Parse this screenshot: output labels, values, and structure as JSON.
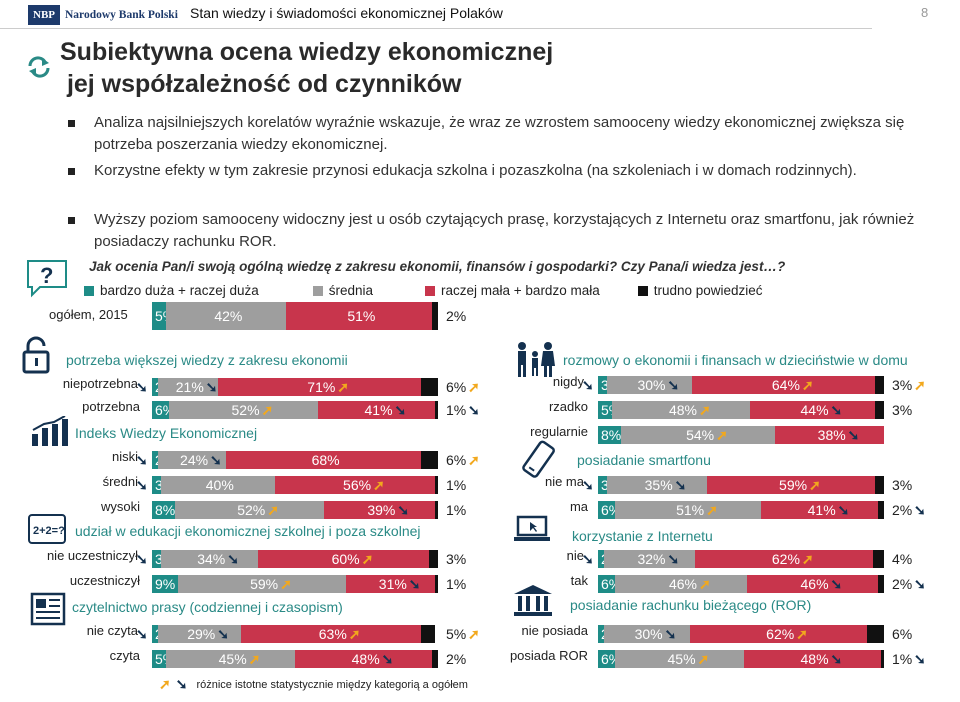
{
  "header": {
    "logo_abbr": "NBP",
    "logo_name": "Narodowy Bank Polski",
    "title": "Stan wiedzy i świadomości ekonomicznej Polaków",
    "page_number": "8"
  },
  "title_line1": "Subiektywna ocena wiedzy ekonomicznej",
  "title_line2": " jej współzależność od czynników",
  "bullets": [
    "Analiza najsilniejszych korelatów wyraźnie wskazuje, że wraz ze wzrostem samooceny wiedzy ekonomicznej zwiększa się potrzeba poszerzania wiedzy ekonomicznej.",
    "Korzystne efekty w tym zakresie przynosi edukacja szkolna i pozaszkolna (na szkoleniach i w domach rodzinnych).",
    "Wyższy poziom samooceny widoczny jest u osób czytających prasę, korzystających z Internetu oraz smartfonu, jak również posiadaczy rachunku ROR."
  ],
  "question": "Jak ocenia Pan/i swoją ogólną wiedzę z zakresu ekonomii, finansów i gospodarki? Czy Pana/i wiedza jest…?",
  "colors": {
    "teal": "#1e8c87",
    "gray": "#9e9e9e",
    "red": "#c8354c",
    "black": "#111111",
    "orange": "#f2a81d",
    "navy": "#14314f"
  },
  "footnote": "różnice istotne statystycznie między kategorią a ogółem",
  "chart_data": {
    "type": "bar",
    "stacked": true,
    "orientation": "horizontal",
    "legend": [
      "bardzo duża + raczej duża",
      "średnia",
      "raczej mała + bardzo mała",
      "trudno powiedzieć"
    ],
    "overall": {
      "label": "ogółem, 2015",
      "values": [
        5,
        42,
        51,
        2
      ]
    },
    "groups": [
      {
        "title": "potrzeba większej wiedzy z zakresu ekonomii",
        "side": "left",
        "rows": [
          {
            "label": "niepotrzebna",
            "values": [
              2,
              21,
              71,
              6
            ],
            "label_markers": [
              "down"
            ],
            "value_markers": [
              "",
              "down",
              "up",
              "up"
            ]
          },
          {
            "label": "potrzebna",
            "values": [
              6,
              52,
              41,
              1
            ],
            "label_markers": [],
            "value_markers": [
              "up",
              "up",
              "down",
              "down"
            ]
          }
        ]
      },
      {
        "title": "Indeks Wiedzy Ekonomicznej",
        "side": "left",
        "rows": [
          {
            "label": "niski",
            "values": [
              2,
              24,
              68,
              6
            ],
            "label_markers": [
              "down"
            ],
            "value_markers": [
              "down",
              "down",
              "",
              "up"
            ]
          },
          {
            "label": "średni",
            "values": [
              3,
              40,
              56,
              1
            ],
            "label_markers": [
              "down"
            ],
            "value_markers": [
              "",
              "",
              "up",
              ""
            ]
          },
          {
            "label": "wysoki",
            "values": [
              8,
              52,
              39,
              1
            ],
            "label_markers": [],
            "value_markers": [
              "up",
              "up",
              "down",
              ""
            ]
          }
        ]
      },
      {
        "title": "udział w edukacji ekonomicznej szkolnej i poza szkolnej",
        "side": "left",
        "rows": [
          {
            "label": "nie uczestniczył",
            "values": [
              3,
              34,
              60,
              3
            ],
            "label_markers": [
              "down"
            ],
            "value_markers": [
              "down",
              "down",
              "up",
              ""
            ]
          },
          {
            "label": "uczestniczył",
            "values": [
              9,
              59,
              31,
              1
            ],
            "label_markers": [],
            "value_markers": [
              "up",
              "up",
              "down",
              ""
            ]
          }
        ]
      },
      {
        "title": "czytelnictwo prasy (codziennej i czasopism)",
        "side": "left",
        "rows": [
          {
            "label": "nie czyta",
            "values": [
              2,
              29,
              63,
              5
            ],
            "label_markers": [
              "down"
            ],
            "value_markers": [
              "down",
              "down",
              "up",
              "up"
            ]
          },
          {
            "label": "czyta",
            "values": [
              5,
              45,
              48,
              2
            ],
            "label_markers": [],
            "value_markers": [
              "up",
              "up",
              "down",
              ""
            ]
          }
        ]
      },
      {
        "title": "rozmowy o ekonomii i finansach w dzieciństwie w domu",
        "side": "right",
        "rows": [
          {
            "label": "nigdy",
            "values": [
              3,
              30,
              64,
              3
            ],
            "label_markers": [
              "down"
            ],
            "value_markers": [
              "down",
              "down",
              "up",
              "up"
            ]
          },
          {
            "label": "rzadko",
            "values": [
              5,
              48,
              44,
              3
            ],
            "label_markers": [],
            "value_markers": [
              "",
              "up",
              "down",
              ""
            ]
          },
          {
            "label": "regularnie",
            "values": [
              8,
              54,
              38,
              0
            ],
            "label_markers": [],
            "value_markers": [
              "up",
              "up",
              "down",
              ""
            ]
          }
        ]
      },
      {
        "title": "posiadanie smartfonu",
        "side": "right",
        "rows": [
          {
            "label": "nie ma",
            "values": [
              3,
              35,
              59,
              3
            ],
            "label_markers": [
              "down"
            ],
            "value_markers": [
              "down",
              "down",
              "up",
              ""
            ]
          },
          {
            "label": "ma",
            "values": [
              6,
              51,
              41,
              2
            ],
            "label_markers": [],
            "value_markers": [
              "up",
              "up",
              "down",
              "down"
            ]
          }
        ]
      },
      {
        "title": "korzystanie z Internetu",
        "side": "right",
        "rows": [
          {
            "label": "nie",
            "values": [
              2,
              32,
              62,
              4
            ],
            "label_markers": [
              "down"
            ],
            "value_markers": [
              "down",
              "down",
              "up",
              ""
            ]
          },
          {
            "label": "tak",
            "values": [
              6,
              46,
              46,
              2
            ],
            "label_markers": [],
            "value_markers": [
              "up",
              "up",
              "down",
              "down"
            ]
          }
        ]
      },
      {
        "title": "posiadanie rachunku bieżącego (ROR)",
        "side": "right",
        "rows": [
          {
            "label": "nie posiada",
            "values": [
              2,
              30,
              62,
              6
            ],
            "label_markers": [],
            "value_markers": [
              "down",
              "down",
              "up",
              ""
            ]
          },
          {
            "label": "posiada ROR",
            "values": [
              6,
              45,
              48,
              1
            ],
            "label_markers": [],
            "value_markers": [
              "up",
              "up",
              "down",
              "down"
            ]
          }
        ]
      }
    ]
  }
}
